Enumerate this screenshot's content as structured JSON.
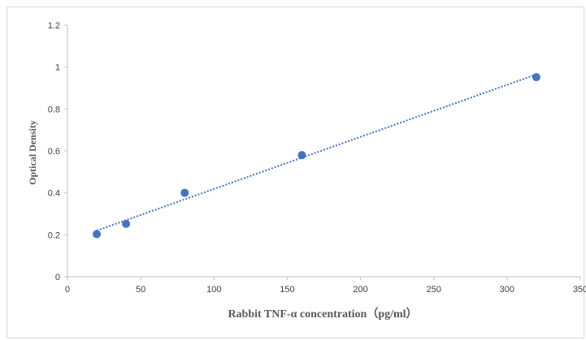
{
  "chart_data": {
    "type": "scatter",
    "title": "",
    "xlabel": "Rabbit TNF-α concentration（pg/ml）",
    "ylabel": "Optical Density",
    "xlim": [
      0,
      350
    ],
    "ylim": [
      0,
      1.2
    ],
    "xticks": [
      "0",
      "50",
      "100",
      "150",
      "200",
      "250",
      "300",
      "350"
    ],
    "yticks": [
      "0",
      "0.2",
      "0.4",
      "0.6",
      "0.8",
      "1",
      "1.2"
    ],
    "grid": false,
    "legend": "none",
    "series": [
      {
        "x": [
          20,
          40,
          80,
          160,
          320
        ],
        "y": [
          0.203,
          0.252,
          0.4,
          0.58,
          0.952
        ],
        "marker_color": "#4472c4"
      }
    ],
    "trendline": {
      "style": "dotted",
      "color": "#4472c4",
      "x_range": [
        20,
        320
      ],
      "y_range": [
        0.22,
        0.965
      ]
    }
  }
}
